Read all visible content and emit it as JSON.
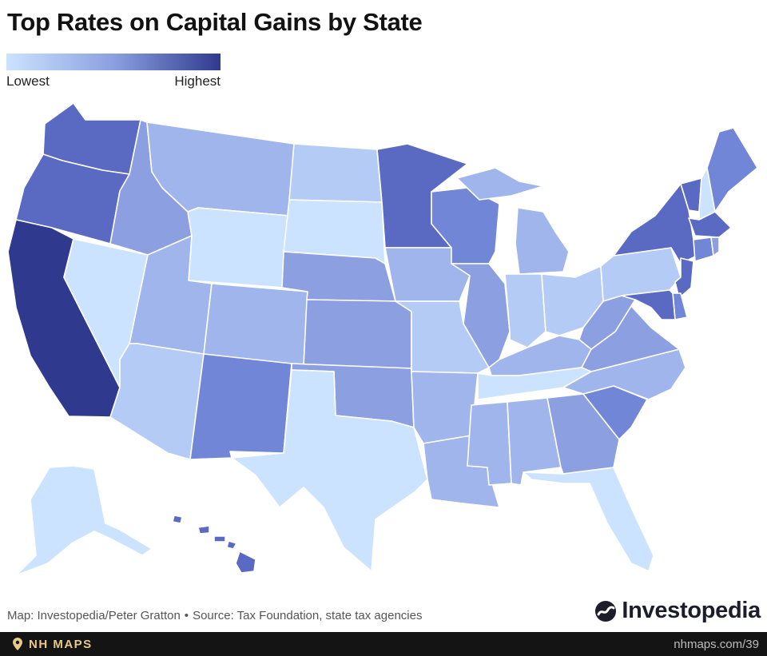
{
  "title": "Top Rates on Capital Gains by State",
  "legend": {
    "low_label": "Lowest",
    "high_label": "Highest",
    "colors": [
      "#cce3ff",
      "#8aa0e0",
      "#2f3a8f"
    ]
  },
  "palette": {
    "lightest": "#cce3ff",
    "light": "#b4cbf5",
    "medium_light": "#9fb5ec",
    "medium": "#8c9fe0",
    "medium_dark": "#7186d7",
    "dark": "#5a6ac2",
    "darkest": "#2f3a8f"
  },
  "map": {
    "states": [
      {
        "code": "WA",
        "level": "dark"
      },
      {
        "code": "OR",
        "level": "dark"
      },
      {
        "code": "CA",
        "level": "darkest"
      },
      {
        "code": "NV",
        "level": "lightest"
      },
      {
        "code": "ID",
        "level": "medium"
      },
      {
        "code": "MT",
        "level": "medium_light"
      },
      {
        "code": "WY",
        "level": "lightest"
      },
      {
        "code": "UT",
        "level": "medium_light"
      },
      {
        "code": "AZ",
        "level": "light"
      },
      {
        "code": "CO",
        "level": "medium_light"
      },
      {
        "code": "NM",
        "level": "medium_dark"
      },
      {
        "code": "ND",
        "level": "light"
      },
      {
        "code": "SD",
        "level": "lightest"
      },
      {
        "code": "NE",
        "level": "medium"
      },
      {
        "code": "KS",
        "level": "medium"
      },
      {
        "code": "OK",
        "level": "medium"
      },
      {
        "code": "TX",
        "level": "lightest"
      },
      {
        "code": "MN",
        "level": "dark"
      },
      {
        "code": "IA",
        "level": "medium_light"
      },
      {
        "code": "MO",
        "level": "light"
      },
      {
        "code": "AR",
        "level": "medium_light"
      },
      {
        "code": "LA",
        "level": "medium_light"
      },
      {
        "code": "WI",
        "level": "medium_dark"
      },
      {
        "code": "IL",
        "level": "medium"
      },
      {
        "code": "MI",
        "level": "medium_light"
      },
      {
        "code": "IN",
        "level": "light"
      },
      {
        "code": "OH",
        "level": "light"
      },
      {
        "code": "KY",
        "level": "medium_light"
      },
      {
        "code": "TN",
        "level": "lightest"
      },
      {
        "code": "MS",
        "level": "medium_light"
      },
      {
        "code": "AL",
        "level": "medium_light"
      },
      {
        "code": "GA",
        "level": "medium"
      },
      {
        "code": "FL",
        "level": "lightest"
      },
      {
        "code": "SC",
        "level": "medium_dark"
      },
      {
        "code": "NC",
        "level": "medium_light"
      },
      {
        "code": "VA",
        "level": "medium"
      },
      {
        "code": "WV",
        "level": "medium"
      },
      {
        "code": "PA",
        "level": "light"
      },
      {
        "code": "NY",
        "level": "dark"
      },
      {
        "code": "VT",
        "level": "dark"
      },
      {
        "code": "NH",
        "level": "lightest"
      },
      {
        "code": "ME",
        "level": "medium_dark"
      },
      {
        "code": "MA",
        "level": "dark"
      },
      {
        "code": "CT",
        "level": "medium_dark"
      },
      {
        "code": "RI",
        "level": "medium"
      },
      {
        "code": "NJ",
        "level": "dark"
      },
      {
        "code": "DE",
        "level": "medium_dark"
      },
      {
        "code": "MD",
        "level": "dark"
      },
      {
        "code": "AK",
        "level": "lightest"
      },
      {
        "code": "HI",
        "level": "dark"
      }
    ]
  },
  "credits": {
    "map": "Map: Investopedia/Peter Gratton",
    "separator": "•",
    "source": "Source: Tax Foundation, state tax agencies"
  },
  "brand": {
    "name": "Investopedia",
    "icon": "investopedia-logo-icon"
  },
  "footer": {
    "brand": "NH MAPS",
    "url": "nhmaps.com/39",
    "icon": "map-pin-icon"
  }
}
